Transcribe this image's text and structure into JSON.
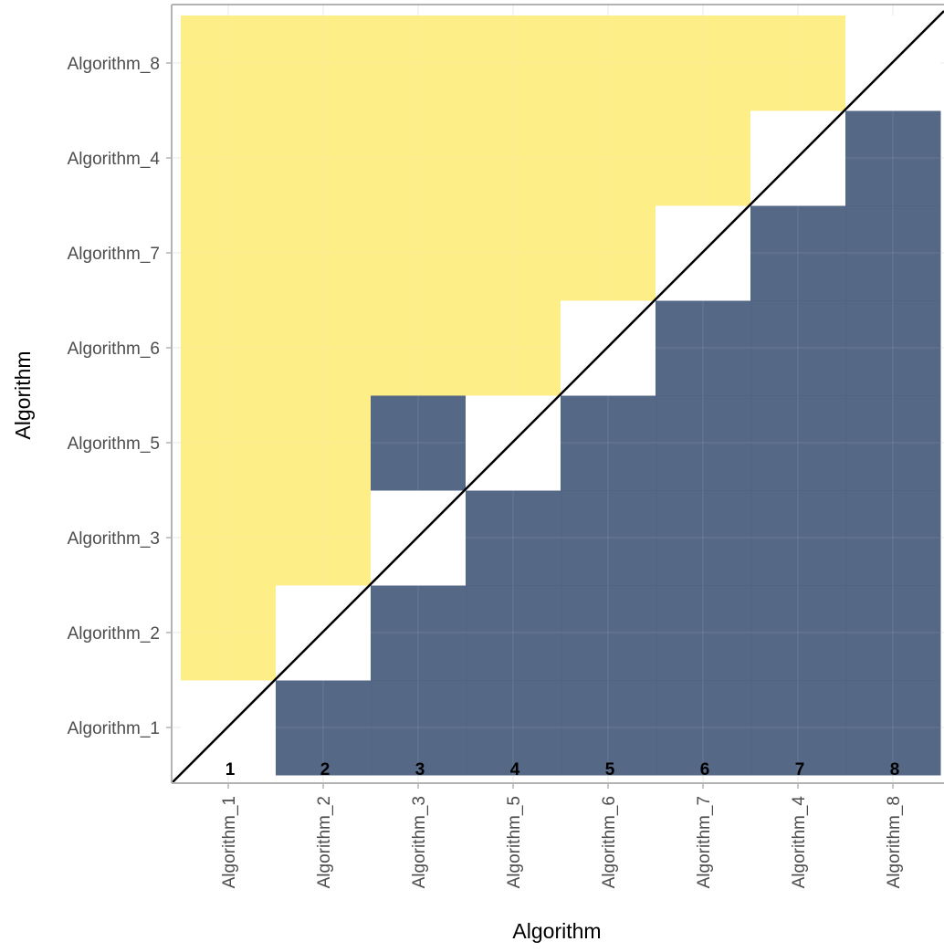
{
  "chart_data": {
    "type": "heatmap",
    "title": "",
    "xlabel": "Algorithm",
    "ylabel": "Algorithm",
    "x_categories": [
      "Algorithm_1",
      "Algorithm_2",
      "Algorithm_3",
      "Algorithm_5",
      "Algorithm_6",
      "Algorithm_7",
      "Algorithm_4",
      "Algorithm_8"
    ],
    "y_categories": [
      "Algorithm_1",
      "Algorithm_2",
      "Algorithm_3",
      "Algorithm_5",
      "Algorithm_6",
      "Algorithm_7",
      "Algorithm_4",
      "Algorithm_8"
    ],
    "rank_labels": [
      "1",
      "2",
      "3",
      "4",
      "5",
      "6",
      "7",
      "8"
    ],
    "matrix": [
      [
        "diag",
        "blue",
        "blue",
        "blue",
        "blue",
        "blue",
        "blue",
        "blue"
      ],
      [
        "yellow",
        "diag",
        "blue",
        "blue",
        "blue",
        "blue",
        "blue",
        "blue"
      ],
      [
        "yellow",
        "yellow",
        "diag",
        "blue",
        "blue",
        "blue",
        "blue",
        "blue"
      ],
      [
        "yellow",
        "yellow",
        "blue",
        "diag",
        "blue",
        "blue",
        "blue",
        "blue"
      ],
      [
        "yellow",
        "yellow",
        "yellow",
        "yellow",
        "diag",
        "blue",
        "blue",
        "blue"
      ],
      [
        "yellow",
        "yellow",
        "yellow",
        "yellow",
        "yellow",
        "diag",
        "blue",
        "blue"
      ],
      [
        "yellow",
        "yellow",
        "yellow",
        "yellow",
        "yellow",
        "yellow",
        "diag",
        "blue"
      ],
      [
        "yellow",
        "yellow",
        "yellow",
        "yellow",
        "yellow",
        "yellow",
        "yellow",
        "diag"
      ]
    ],
    "matrix_note_rows": "rows ordered bottom-to-top following y_categories; columns follow x_categories",
    "diagonal_line": true,
    "grid": true,
    "legend": "none",
    "colors": {
      "blue": "#4c607f",
      "yellow": "#fded82",
      "diag": "#ffffff",
      "grid": "#e6e6e6",
      "axis": "#b3b3b3"
    }
  }
}
